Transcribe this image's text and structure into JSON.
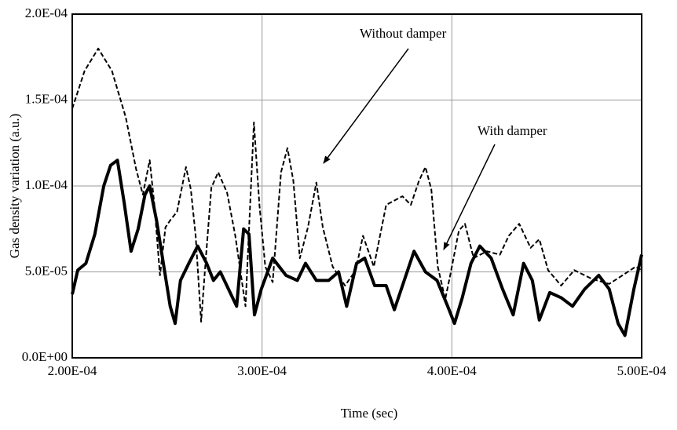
{
  "chart_data": {
    "type": "line",
    "x_label": "Time (sec)",
    "y_label": "Gas density variation (a.u.)",
    "xlim": [
      0.0002,
      0.0005
    ],
    "ylim": [
      0,
      0.0002
    ],
    "xticks": [
      {
        "value": 0.0002,
        "label": "2.00E-04"
      },
      {
        "value": 0.0003,
        "label": "3.00E-04"
      },
      {
        "value": 0.0004,
        "label": "4.00E-04"
      },
      {
        "value": 0.0005,
        "label": "5.00E-04"
      }
    ],
    "yticks": [
      {
        "value": 0,
        "label": "0.0E+00"
      },
      {
        "value": 5e-05,
        "label": "5.0E-05"
      },
      {
        "value": 0.0001,
        "label": "1.0E-04"
      },
      {
        "value": 0.00015,
        "label": "1.5E-04"
      },
      {
        "value": 0.0002,
        "label": "2.0E-04"
      }
    ],
    "grid": true,
    "annotations": [
      {
        "text": "Without damper"
      },
      {
        "text": "With damper"
      }
    ],
    "series": [
      {
        "name": "Without damper",
        "color": "#000000",
        "linestyle": "dashed",
        "x": [
          0.0002,
          0.0002065,
          0.0002137,
          0.0002209,
          0.0002282,
          0.0002336,
          0.0002372,
          0.0002408,
          0.0002433,
          0.0002462,
          0.0002491,
          0.0002516,
          0.0002552,
          0.0002599,
          0.0002625,
          0.000265,
          0.0002679,
          0.0002704,
          0.0002733,
          0.0002769,
          0.0002816,
          0.0002859,
          0.0002913,
          0.0002957,
          0.0002986,
          0.0003017,
          0.0003056,
          0.00031,
          0.0003134,
          0.0003165,
          0.0003199,
          0.0003242,
          0.0003286,
          0.000332,
          0.0003372,
          0.0003437,
          0.0003494,
          0.0003532,
          0.0003589,
          0.0003654,
          0.000374,
          0.0003784,
          0.0003827,
          0.0003861,
          0.0003892,
          0.0003926,
          0.0003965,
          0.0003991,
          0.0004037,
          0.0004069,
          0.0004115,
          0.0004184,
          0.0004253,
          0.00043,
          0.0004355,
          0.0004415,
          0.0004461,
          0.0004507,
          0.0004576,
          0.0004645,
          0.0004737,
          0.0004829,
          0.0004899,
          0.0004968,
          0.0005
        ],
        "values": [
          0.000145,
          0.000167,
          0.00018,
          0.000167,
          0.00014,
          0.00011,
          9.5e-05,
          0.000115,
          8.9e-05,
          4.8e-05,
          7.6e-05,
          8e-05,
          8.5e-05,
          0.000111,
          9.8e-05,
          7.1e-05,
          2.1e-05,
          5.8e-05,
          9.9e-05,
          0.000108,
          9.6e-05,
          7.1e-05,
          3e-05,
          0.000137,
          8.9e-05,
          5.3e-05,
          4.4e-05,
          0.000108,
          0.000122,
          0.000103,
          5.8e-05,
          7.6e-05,
          0.000102,
          7.6e-05,
          5.3e-05,
          4.2e-05,
          5.1e-05,
          7.1e-05,
          5.3e-05,
          8.9e-05,
          9.4e-05,
          8.9e-05,
          0.000103,
          0.000111,
          9.8e-05,
          5.3e-05,
          3.4e-05,
          4.8e-05,
          7.4e-05,
          7.8e-05,
          5.8e-05,
          6.2e-05,
          6e-05,
          7.1e-05,
          7.8e-05,
          6.4e-05,
          6.9e-05,
          5.1e-05,
          4.2e-05,
          5.1e-05,
          4.6e-05,
          4.3e-05,
          4.8e-05,
          5.3e-05,
          5.1e-05
        ]
      },
      {
        "name": "With damper",
        "color": "#000000",
        "linestyle": "solid",
        "x": [
          0.0002,
          0.0002029,
          0.0002072,
          0.0002119,
          0.0002166,
          0.0002202,
          0.0002238,
          0.0002274,
          0.000231,
          0.0002347,
          0.0002383,
          0.0002408,
          0.0002444,
          0.000248,
          0.0002516,
          0.0002542,
          0.000257,
          0.0002614,
          0.0002661,
          0.0002708,
          0.0002744,
          0.000278,
          0.0002823,
          0.0002866,
          0.0002903,
          0.0002931,
          0.000296,
          0.0002996,
          0.0003056,
          0.0003126,
          0.0003186,
          0.0003229,
          0.0003286,
          0.0003351,
          0.0003403,
          0.0003446,
          0.0003498,
          0.0003541,
          0.0003593,
          0.0003654,
          0.0003697,
          0.0003749,
          0.0003801,
          0.0003861,
          0.0003922,
          0.0003978,
          0.0004014,
          0.0004055,
          0.0004101,
          0.0004147,
          0.0004207,
          0.0004267,
          0.0004323,
          0.0004378,
          0.0004424,
          0.0004461,
          0.0004516,
          0.0004576,
          0.0004636,
          0.00047,
          0.0004774,
          0.0004829,
          0.0004876,
          0.0004912,
          0.0004959,
          0.0005
        ],
        "values": [
          3.7e-05,
          5.1e-05,
          5.5e-05,
          7.2e-05,
          0.0001,
          0.000112,
          0.000115,
          9e-05,
          6.2e-05,
          7.5e-05,
          9.5e-05,
          0.0001,
          8e-05,
          5.5e-05,
          3e-05,
          2e-05,
          4.5e-05,
          5.5e-05,
          6.5e-05,
          5.5e-05,
          4.5e-05,
          5e-05,
          4e-05,
          3e-05,
          7.5e-05,
          7.2e-05,
          2.5e-05,
          4e-05,
          5.8e-05,
          4.8e-05,
          4.5e-05,
          5.5e-05,
          4.5e-05,
          4.5e-05,
          5e-05,
          3e-05,
          5.5e-05,
          5.8e-05,
          4.2e-05,
          4.2e-05,
          2.8e-05,
          4.5e-05,
          6.2e-05,
          5e-05,
          4.5e-05,
          3e-05,
          2e-05,
          3.5e-05,
          5.5e-05,
          6.5e-05,
          5.8e-05,
          4e-05,
          2.5e-05,
          5.5e-05,
          4.5e-05,
          2.2e-05,
          3.8e-05,
          3.5e-05,
          3e-05,
          4e-05,
          4.8e-05,
          4e-05,
          2e-05,
          1.3e-05,
          4e-05,
          6e-05
        ]
      }
    ]
  }
}
